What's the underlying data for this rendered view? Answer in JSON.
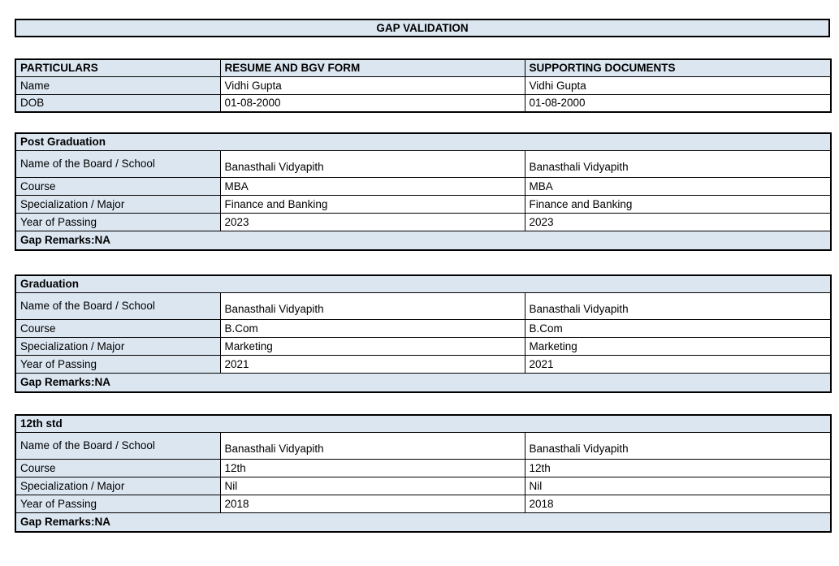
{
  "title": "GAP VALIDATION",
  "particulars_table": {
    "headers": [
      "PARTICULARS",
      "RESUME AND BGV FORM",
      "SUPPORTING DOCUMENTS"
    ],
    "rows": [
      {
        "label": "Name",
        "resume": "Vidhi Gupta",
        "supporting": "Vidhi Gupta"
      },
      {
        "label": "DOB",
        "resume": "01-08-2000",
        "supporting": "01-08-2000"
      }
    ]
  },
  "sections": [
    {
      "title": "Post Graduation",
      "rows": [
        {
          "label": "Name of the Board / School",
          "resume": "Banasthali Vidyapith",
          "supporting": "Banasthali Vidyapith"
        },
        {
          "label": "Course",
          "resume": "MBA",
          "supporting": "MBA"
        },
        {
          "label": "Specialization / Major",
          "resume": "Finance and Banking",
          "supporting": "Finance and Banking"
        },
        {
          "label": "Year of Passing",
          "resume": "2023",
          "supporting": "2023"
        }
      ],
      "gap_remarks": "Gap Remarks:NA"
    },
    {
      "title": "Graduation",
      "rows": [
        {
          "label": "Name of the Board / School",
          "resume": "Banasthali Vidyapith",
          "supporting": "Banasthali Vidyapith"
        },
        {
          "label": "Course",
          "resume": "B.Com",
          "supporting": "B.Com"
        },
        {
          "label": "Specialization / Major",
          "resume": "Marketing",
          "supporting": "Marketing"
        },
        {
          "label": "Year of Passing",
          "resume": "2021",
          "supporting": "2021"
        }
      ],
      "gap_remarks": "Gap Remarks:NA"
    },
    {
      "title": "12th std",
      "rows": [
        {
          "label": "Name of the Board / School",
          "resume": "Banasthali Vidyapith",
          "supporting": "Banasthali Vidyapith"
        },
        {
          "label": "Course",
          "resume": "12th",
          "supporting": "12th"
        },
        {
          "label": "Specialization / Major",
          "resume": "Nil",
          "supporting": "Nil"
        },
        {
          "label": "Year of Passing",
          "resume": "2018",
          "supporting": "2018"
        }
      ],
      "gap_remarks": "Gap Remarks:NA"
    }
  ],
  "colors": {
    "fill_light_blue": "#dce6f1",
    "border": "#000000",
    "text": "#000000",
    "background": "#ffffff"
  }
}
